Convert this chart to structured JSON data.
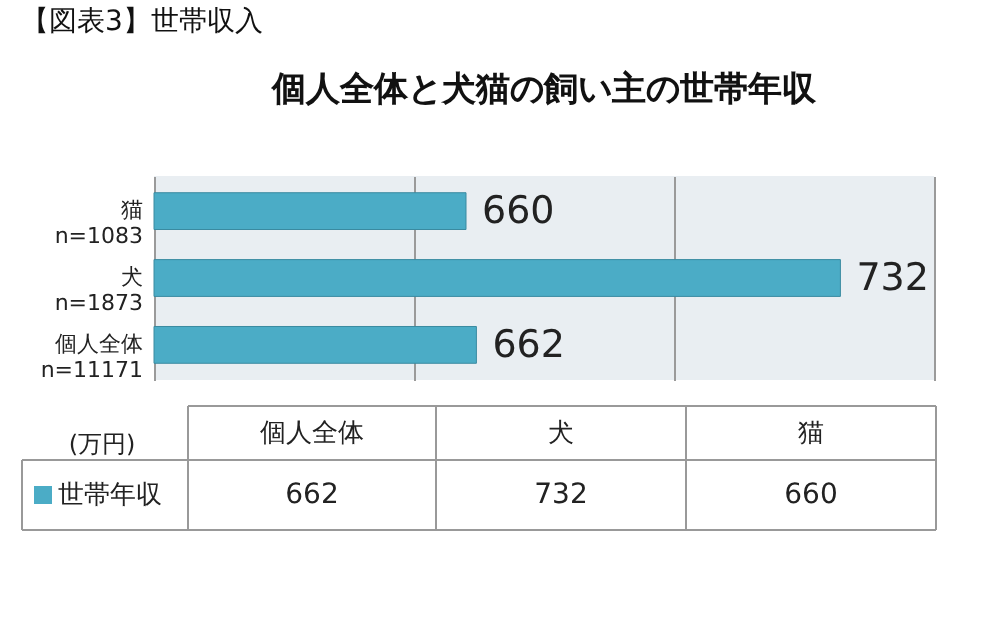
{
  "chart_data": [
    {
      "type": "bar",
      "orientation": "horizontal",
      "title": "【図表3】世帯収入",
      "subtitle": "個人全体と犬猫の飼い主の世帯年収",
      "categories": [
        "猫\nn=1083",
        "犬\nn=1873",
        "個人全体\nn=11171"
      ],
      "series": [
        {
          "color": "#4bacc6",
          "values": [
            660,
            732,
            662
          ]
        }
      ],
      "xlim": [
        600,
        750
      ],
      "xticks": [
        {
          "value": 600,
          "label": null
        },
        {
          "value": 650,
          "label": null
        },
        {
          "value": 700,
          "label": null
        },
        {
          "value": 750,
          "label": null
        }
      ],
      "tick_labels": "y",
      "grid": "x",
      "data_labels": true
    },
    {
      "type": "other",
      "categories": [
        "個人全体",
        "犬",
        "猫"
      ],
      "series": [
        {
          "name": "世帯年収",
          "color": "#4bacc6",
          "values": [
            662,
            732,
            660
          ]
        }
      ],
      "data_labels": true,
      "legend": "left",
      "annotations": [
        "(万円)"
      ]
    }
  ]
}
